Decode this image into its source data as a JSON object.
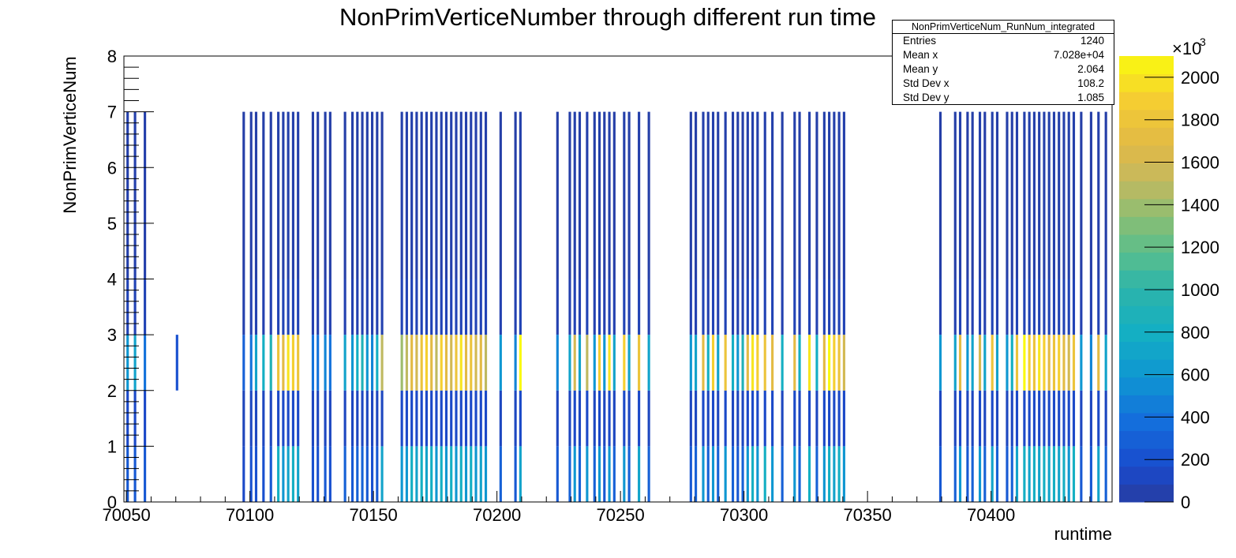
{
  "chart_data": {
    "type": "heatmap",
    "title": "NonPrimVerticeNumber through different run time",
    "xlabel": "runtime",
    "ylabel": "NonPrimVerticeNum",
    "xlim": [
      70049,
      70449
    ],
    "ylim": [
      0,
      8
    ],
    "x_ticks": [
      "70050",
      "70100",
      "70150",
      "70200",
      "70250",
      "70300",
      "70350",
      "70400"
    ],
    "x_tick_values": [
      70050,
      70100,
      70150,
      70200,
      70250,
      70300,
      70350,
      70400
    ],
    "y_ticks": [
      "0",
      "1",
      "2",
      "3",
      "4",
      "5",
      "6",
      "7",
      "8"
    ],
    "z_ticks": [
      "0",
      "200",
      "400",
      "600",
      "800",
      "1000",
      "1200",
      "1400",
      "1600",
      "1800",
      "2000"
    ],
    "z_multiplier": "×10",
    "z_exponent": "3",
    "zlim": [
      0,
      2100000
    ],
    "palette": "viridis-like (blue to yellow)",
    "stats": {
      "name": "NonPrimVerticeNum_RunNum_integrated",
      "rows": [
        {
          "label": "Entries",
          "value": "1240"
        },
        {
          "label": "Mean x",
          "value": "7.028e+04"
        },
        {
          "label": "Mean y",
          "value": "2.064"
        },
        {
          "label": "Std Dev x",
          "value": "108.2"
        },
        {
          "label": "Std Dev y",
          "value": "1.085"
        }
      ]
    },
    "runs": [
      70050,
      70053,
      70057,
      70070,
      70097,
      70100,
      70102,
      70105,
      70108,
      70111,
      70113,
      70115,
      70117,
      70119,
      70125,
      70127,
      70130,
      70132,
      70138,
      70141,
      70143,
      70145,
      70147,
      70149,
      70151,
      70153,
      70161,
      70163,
      70165,
      70167,
      70169,
      70171,
      70173,
      70175,
      70177,
      70179,
      70181,
      70183,
      70185,
      70187,
      70189,
      70191,
      70193,
      70195,
      70201,
      70207,
      70209,
      70224,
      70229,
      70231,
      70233,
      70236,
      70239,
      70241,
      70243,
      70245,
      70247,
      70251,
      70253,
      70257,
      70261,
      70278,
      70280,
      70283,
      70285,
      70287,
      70289,
      70292,
      70295,
      70297,
      70299,
      70301,
      70303,
      70305,
      70308,
      70311,
      70315,
      70320,
      70322,
      70326,
      70329,
      70332,
      70334,
      70336,
      70338,
      70340,
      70379,
      70385,
      70387,
      70390,
      70392,
      70395,
      70397,
      70400,
      70402,
      70406,
      70408,
      70410,
      70413,
      70415,
      70417,
      70419,
      70421,
      70423,
      70425,
      70427,
      70429,
      70431,
      70433,
      70436,
      70440,
      70443,
      70446
    ],
    "band_counts_k": {
      "y_0_1": [
        250,
        250,
        250,
        0,
        150,
        200,
        200,
        200,
        250,
        800,
        600,
        700,
        800,
        700,
        200,
        200,
        250,
        200,
        300,
        250,
        300,
        300,
        250,
        200,
        250,
        700,
        600,
        600,
        800,
        700,
        800,
        700,
        800,
        600,
        800,
        600,
        800,
        600,
        800,
        600,
        800,
        600,
        700,
        600,
        300,
        250,
        700,
        250,
        300,
        600,
        300,
        600,
        300,
        600,
        250,
        600,
        300,
        600,
        300,
        700,
        300,
        250,
        300,
        600,
        300,
        600,
        300,
        600,
        300,
        250,
        300,
        600,
        800,
        600,
        800,
        600,
        300,
        600,
        300,
        800,
        300,
        600,
        800,
        700,
        800,
        600,
        250,
        300,
        600,
        250,
        300,
        600,
        300,
        700,
        300,
        250,
        300,
        700,
        800,
        700,
        800,
        700,
        800,
        700,
        800,
        700,
        800,
        600,
        800,
        250,
        250,
        700,
        300
      ],
      "y_1_2": [
        150,
        150,
        150,
        0,
        100,
        120,
        120,
        120,
        120,
        150,
        150,
        150,
        150,
        150,
        120,
        120,
        120,
        120,
        120,
        120,
        120,
        120,
        120,
        120,
        120,
        120,
        150,
        150,
        150,
        150,
        150,
        150,
        150,
        150,
        150,
        150,
        150,
        150,
        150,
        150,
        150,
        150,
        150,
        150,
        120,
        120,
        150,
        120,
        120,
        150,
        120,
        150,
        120,
        150,
        120,
        150,
        120,
        150,
        120,
        150,
        120,
        120,
        120,
        150,
        120,
        150,
        120,
        150,
        120,
        120,
        120,
        150,
        150,
        150,
        150,
        150,
        120,
        150,
        120,
        150,
        120,
        150,
        150,
        150,
        150,
        150,
        120,
        120,
        150,
        120,
        120,
        150,
        120,
        150,
        120,
        120,
        120,
        150,
        150,
        150,
        150,
        150,
        150,
        150,
        150,
        150,
        150,
        150,
        150,
        120,
        120,
        150,
        120
      ],
      "y_2_3": [
        600,
        700,
        400,
        200,
        300,
        400,
        700,
        800,
        900,
        1800,
        1700,
        2000,
        1900,
        1800,
        400,
        400,
        500,
        400,
        700,
        600,
        800,
        900,
        600,
        500,
        800,
        1500,
        1400,
        1500,
        1700,
        1600,
        1800,
        1900,
        1700,
        1500,
        1900,
        1700,
        1600,
        1800,
        2000,
        1700,
        1800,
        1600,
        1700,
        1500,
        600,
        500,
        2100,
        500,
        700,
        1600,
        700,
        1500,
        600,
        1900,
        600,
        2000,
        700,
        1900,
        700,
        1800,
        700,
        600,
        700,
        1700,
        800,
        1900,
        700,
        1800,
        800,
        600,
        900,
        1700,
        2000,
        1900,
        1800,
        1700,
        800,
        1700,
        800,
        2000,
        800,
        1700,
        2100,
        1900,
        1800,
        1600,
        600,
        700,
        1700,
        600,
        700,
        1600,
        700,
        1800,
        700,
        600,
        800,
        1800,
        2100,
        1900,
        1800,
        2000,
        1900,
        1700,
        1800,
        1900,
        1700,
        1600,
        1800,
        600,
        500,
        1700,
        700
      ],
      "y_3_4": [
        80,
        80,
        80,
        0,
        50,
        60,
        60,
        60,
        60,
        80,
        80,
        80,
        80,
        80,
        60,
        60,
        60,
        60,
        60,
        60,
        60,
        60,
        60,
        60,
        60,
        60,
        80,
        80,
        80,
        80,
        80,
        80,
        80,
        80,
        80,
        80,
        80,
        80,
        80,
        80,
        80,
        80,
        80,
        80,
        60,
        60,
        80,
        60,
        60,
        80,
        60,
        80,
        60,
        80,
        60,
        80,
        60,
        80,
        60,
        80,
        60,
        60,
        60,
        80,
        60,
        80,
        60,
        80,
        60,
        60,
        60,
        80,
        80,
        80,
        80,
        80,
        60,
        80,
        60,
        80,
        60,
        80,
        80,
        80,
        80,
        80,
        60,
        60,
        80,
        60,
        60,
        80,
        60,
        80,
        60,
        60,
        60,
        80,
        80,
        80,
        80,
        80,
        80,
        80,
        80,
        80,
        80,
        80,
        80,
        60,
        60,
        80,
        60
      ],
      "y_4_7": [
        40,
        40,
        40,
        0,
        30,
        30,
        30,
        30,
        30,
        40,
        40,
        40,
        40,
        40,
        30,
        30,
        30,
        30,
        30,
        30,
        30,
        30,
        30,
        30,
        30,
        30,
        40,
        40,
        40,
        40,
        40,
        40,
        40,
        40,
        40,
        40,
        40,
        40,
        40,
        40,
        40,
        40,
        40,
        40,
        30,
        30,
        40,
        30,
        30,
        40,
        30,
        40,
        30,
        40,
        30,
        40,
        30,
        40,
        30,
        40,
        30,
        30,
        30,
        40,
        30,
        40,
        30,
        40,
        30,
        30,
        30,
        40,
        40,
        40,
        40,
        40,
        30,
        40,
        30,
        40,
        30,
        40,
        40,
        40,
        40,
        40,
        30,
        30,
        40,
        30,
        30,
        40,
        30,
        40,
        30,
        30,
        30,
        40,
        40,
        40,
        40,
        40,
        40,
        40,
        40,
        40,
        40,
        40,
        40,
        30,
        30,
        40,
        30
      ]
    }
  }
}
